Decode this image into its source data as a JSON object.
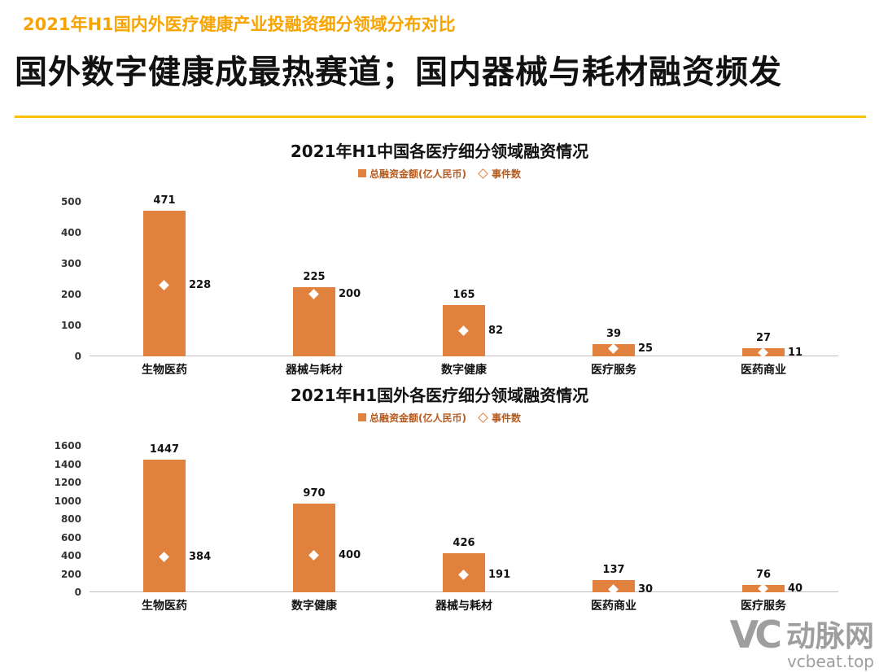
{
  "header": {
    "eyebrow": "2021年H1国内外医疗健康产业投融资细分领域分布对比",
    "title": "国外数字健康成最热赛道；国内器械与耗材融资频发"
  },
  "colors": {
    "bar_orange": "#E0813E",
    "eyebrow_orange": "#F7A400",
    "underline_yellow": "#FFC000",
    "legend_text": "#B65A1E",
    "axis_text": "#333333",
    "baseline_gray": "#BFBFBF",
    "title_black": "#111111",
    "watermark_gray": "#9E9E9E"
  },
  "chart_data": [
    {
      "type": "bar",
      "title": "2021年H1中国各医疗细分领域融资情况",
      "legend": [
        "总融资金额(亿人民币)",
        "事件数"
      ],
      "categories": [
        "生物医药",
        "器械与耗材",
        "数字健康",
        "医疗服务",
        "医药商业"
      ],
      "series": [
        {
          "name": "总融资金额(亿人民币)",
          "type": "bar",
          "values": [
            471,
            225,
            165,
            39,
            27
          ]
        },
        {
          "name": "事件数",
          "type": "point",
          "values": [
            228,
            200,
            82,
            25,
            11
          ]
        }
      ],
      "ylim": [
        0,
        500
      ],
      "yticks": [
        0,
        100,
        200,
        300,
        400,
        500
      ],
      "grid": false,
      "legend_position": "top"
    },
    {
      "type": "bar",
      "title": "2021年H1国外各医疗细分领域融资情况",
      "legend": [
        "总融资金额(亿人民币)",
        "事件数"
      ],
      "categories": [
        "生物医药",
        "数字健康",
        "器械与耗材",
        "医药商业",
        "医疗服务"
      ],
      "series": [
        {
          "name": "总融资金额(亿人民币)",
          "type": "bar",
          "values": [
            1447,
            970,
            426,
            137,
            76
          ]
        },
        {
          "name": "事件数",
          "type": "point",
          "values": [
            384,
            400,
            191,
            30,
            40
          ]
        }
      ],
      "ylim": [
        0,
        1600
      ],
      "yticks": [
        0,
        200,
        400,
        600,
        800,
        1000,
        1200,
        1400,
        1600
      ],
      "grid": false,
      "legend_position": "top"
    }
  ],
  "watermark": {
    "logo_text": "VC",
    "site_name": "动脉网",
    "site_url": "vcbeat.top"
  }
}
